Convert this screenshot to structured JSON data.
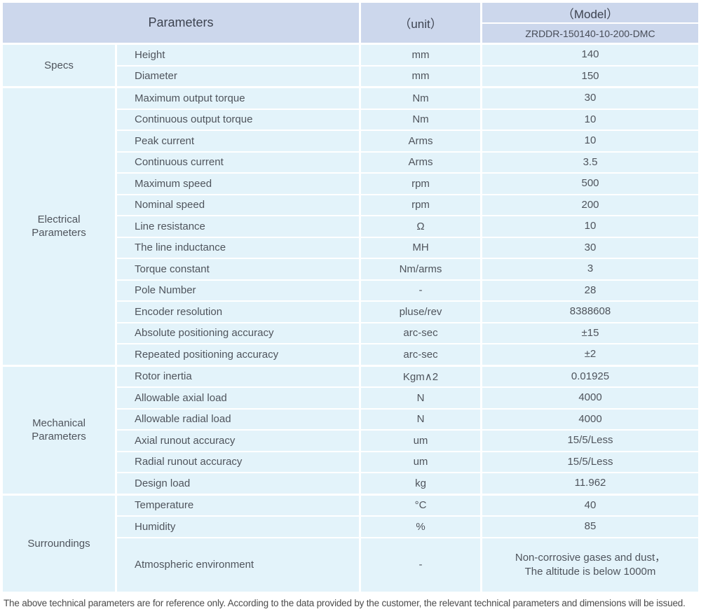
{
  "header": {
    "parameters_label": "Parameters",
    "unit_label": "（unit）",
    "model_label": "（Model）",
    "model_value": "ZRDDR-150140-10-200-DMC"
  },
  "colors": {
    "header_bg": "#ccd7ec",
    "cell_bg": "#e3f3fa",
    "text": "#4f545c",
    "separator": "#ffffff"
  },
  "sections": [
    {
      "name": "Specs",
      "rows": [
        {
          "param": "Height",
          "unit": "mm",
          "value": "140"
        },
        {
          "param": "Diameter",
          "unit": "mm",
          "value": "150"
        }
      ]
    },
    {
      "name": "Electrical Parameters",
      "rows": [
        {
          "param": "Maximum output torque",
          "unit": "Nm",
          "value": "30"
        },
        {
          "param": "Continuous output torque",
          "unit": "Nm",
          "value": "10"
        },
        {
          "param": "Peak current",
          "unit": "Arms",
          "value": "10"
        },
        {
          "param": "Continuous current",
          "unit": "Arms",
          "value": "3.5"
        },
        {
          "param": "Maximum speed",
          "unit": "rpm",
          "value": "500"
        },
        {
          "param": "Nominal speed",
          "unit": "rpm",
          "value": "200"
        },
        {
          "param": "Line resistance",
          "unit": "Ω",
          "value": "10"
        },
        {
          "param": "The line inductance",
          "unit": "MH",
          "value": "30"
        },
        {
          "param": "Torque constant",
          "unit": "Nm/arms",
          "value": "3"
        },
        {
          "param": "Pole Number",
          "unit": "-",
          "value": "28"
        },
        {
          "param": "Encoder resolution",
          "unit": "pluse/rev",
          "value": "8388608"
        },
        {
          "param": "Absolute positioning accuracy",
          "unit": "arc-sec",
          "value": "±15"
        },
        {
          "param": "Repeated positioning accuracy",
          "unit": "arc-sec",
          "value": "±2"
        }
      ]
    },
    {
      "name": "Mechanical Parameters",
      "rows": [
        {
          "param": "Rotor inertia",
          "unit": "Kgm∧2",
          "value": "0.01925"
        },
        {
          "param": "Allowable axial load",
          "unit": "N",
          "value": "4000"
        },
        {
          "param": "Allowable radial load",
          "unit": "N",
          "value": "4000"
        },
        {
          "param": "Axial runout accuracy",
          "unit": "um",
          "value": "15/5/Less"
        },
        {
          "param": "Radial runout accuracy",
          "unit": "um",
          "value": "15/5/Less"
        },
        {
          "param": "Design load",
          "unit": "kg",
          "value": "11.962"
        }
      ]
    },
    {
      "name": "Surroundings",
      "rows": [
        {
          "param": "Temperature",
          "unit": "°C",
          "value": "40"
        },
        {
          "param": "Humidity",
          "unit": "%",
          "value": "85"
        },
        {
          "param": "Atmospheric environment",
          "unit": "-",
          "value": "Non-corrosive gases and dust，\nThe altitude is below 1000m"
        }
      ]
    }
  ],
  "footer": {
    "note": "The above technical parameters are for reference only. According to the data provided by the customer, the relevant technical parameters and dimensions will be issued."
  }
}
